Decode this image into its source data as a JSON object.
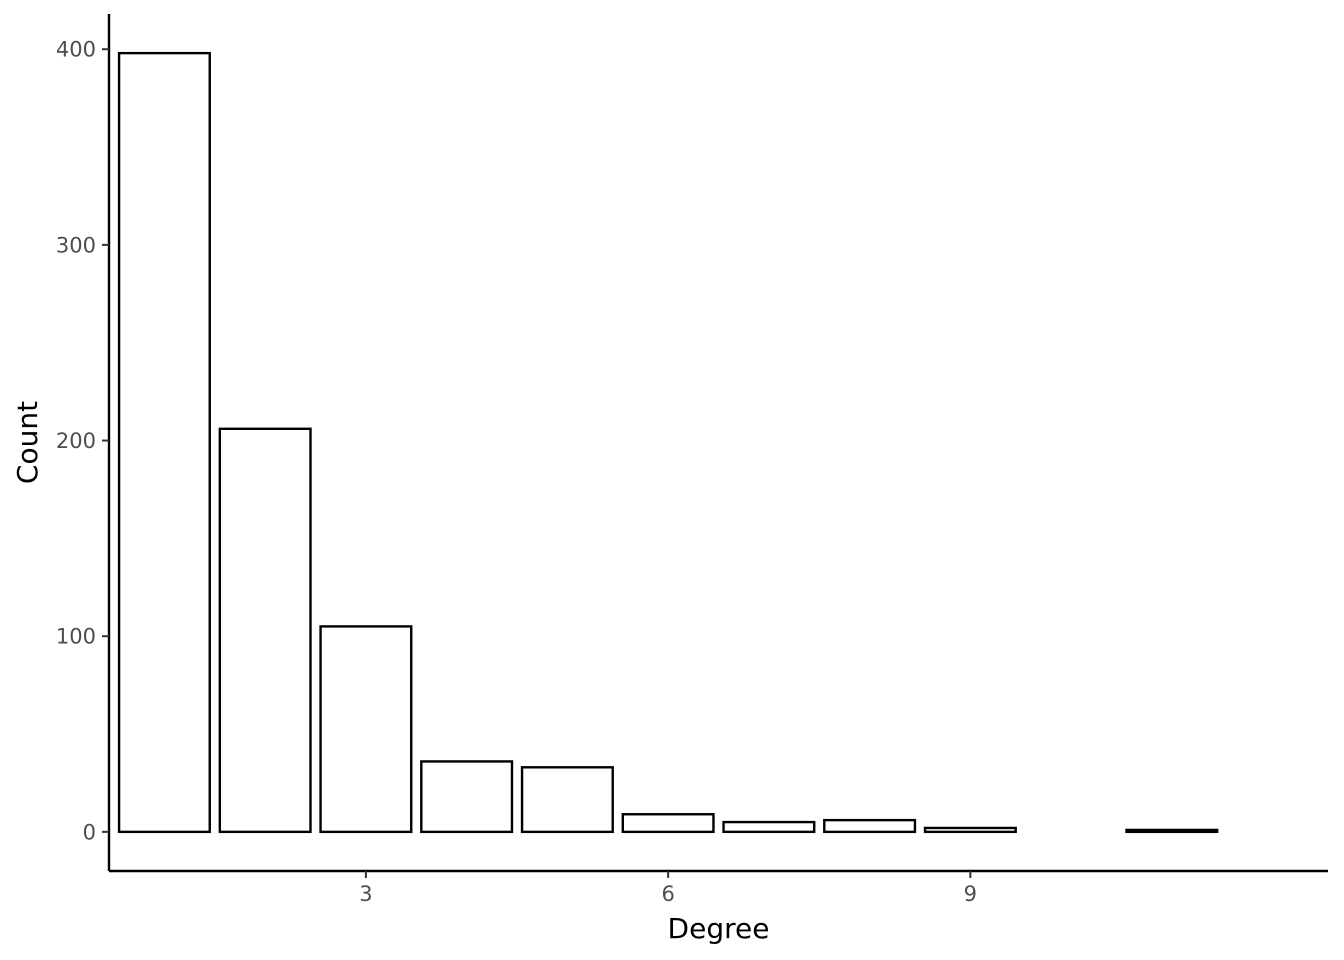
{
  "chart_data": {
    "type": "bar",
    "xlabel": "Degree",
    "ylabel": "Count",
    "x": [
      1,
      2,
      3,
      4,
      5,
      6,
      7,
      8,
      9,
      11
    ],
    "values": [
      398,
      206,
      105,
      36,
      33,
      9,
      5,
      6,
      2,
      1
    ],
    "xlim": [
      0.45,
      12.55
    ],
    "ylim": [
      -20,
      418
    ],
    "x_ticks": [
      3,
      6,
      9
    ],
    "x_tick_labels": [
      "3",
      "6",
      "9"
    ],
    "y_ticks": [
      0,
      100,
      200,
      300,
      400
    ],
    "y_tick_labels": [
      "0",
      "100",
      "200",
      "300",
      "400"
    ],
    "grid": false,
    "bar_fill": "#ffffff",
    "bar_stroke": "#000000",
    "tick_label_color": "#4d4d4d",
    "axis_color": "#000000"
  }
}
